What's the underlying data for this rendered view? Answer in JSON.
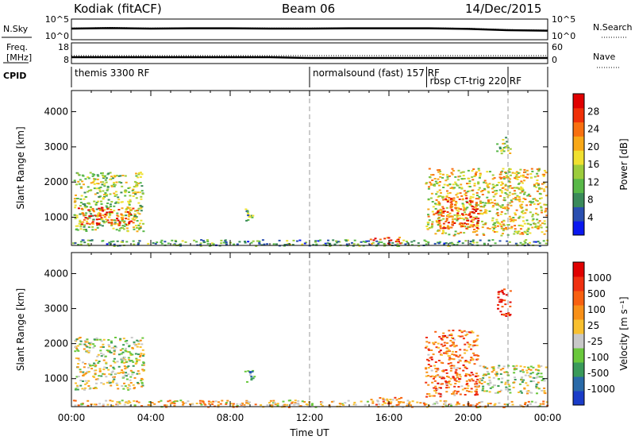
{
  "header": {
    "station": "Kodiak (fitACF)",
    "beam": "Beam 06",
    "date": "14/Dec/2015"
  },
  "chart_data": [
    {
      "type": "line",
      "panel": "noise",
      "left_label": "N.Sky",
      "right_label": "N.Search",
      "left_ticks": [
        "10^5",
        "10^0"
      ],
      "right_ticks": [
        "10^5",
        "10^0"
      ],
      "x": [
        0,
        2,
        4,
        6,
        8,
        10,
        12,
        14,
        16,
        18,
        20,
        22,
        24
      ],
      "series": [
        {
          "values": [
            30,
            32,
            30,
            31,
            31,
            30,
            30,
            31,
            31,
            31,
            29,
            24,
            22
          ]
        },
        {
          "values": [
            32,
            34,
            32,
            33,
            33,
            32,
            32,
            33,
            33,
            33,
            31,
            26,
            24
          ]
        }
      ]
    },
    {
      "type": "line",
      "panel": "freq-nave",
      "left_label": "Freq. [MHz]",
      "right_label": "Nave",
      "left_ticks": [
        "18",
        "8"
      ],
      "right_ticks": [
        "60",
        "0"
      ],
      "x": [
        0,
        2,
        4,
        6,
        8,
        10,
        12,
        14,
        16,
        18,
        20,
        22,
        24
      ],
      "series": [
        {
          "values": [
            11,
            11,
            11,
            11,
            11,
            11,
            10.5,
            10.5,
            10.5,
            10.5,
            10.5,
            10.5,
            10.5
          ]
        },
        {
          "values": [
            12,
            12,
            12,
            12,
            12,
            12,
            12,
            12,
            12,
            12,
            12,
            12,
            12
          ]
        }
      ]
    },
    {
      "type": "table",
      "panel": "cpid",
      "label": "CPID",
      "segments": [
        {
          "start": 0,
          "end": 12,
          "name": "themis 3300 RF"
        },
        {
          "start": 12,
          "end": 22,
          "name": "normalsound (fast) 157 RF"
        },
        {
          "start": 17.9,
          "end": 22,
          "name": "rbsp CT-trig 220 RF"
        }
      ]
    },
    {
      "type": "heatmap",
      "panel": "power",
      "ylabel": "Slant Range [km]",
      "yticks": [
        1000,
        2000,
        3000,
        4000
      ],
      "ylim": [
        200,
        4600
      ],
      "xlim": [
        0,
        24
      ],
      "colorbar_label": "Power [dB]",
      "colorbar_ticks": [
        "28",
        "24",
        "20",
        "16",
        "12",
        "8",
        "4"
      ],
      "colors": [
        "#0a18f0",
        "#2a4fb0",
        "#3a8a5a",
        "#58b848",
        "#9ccc3c",
        "#f0e030",
        "#f8a818",
        "#f87010",
        "#f03008",
        "#e00000"
      ],
      "regions": [
        {
          "t": [
            0.1,
            3.6
          ],
          "r": [
            600,
            2300
          ],
          "level": 0.45
        },
        {
          "t": [
            0.3,
            3.3
          ],
          "r": [
            800,
            1300
          ],
          "level": 0.8
        },
        {
          "t": [
            0.0,
            24
          ],
          "r": [
            200,
            380
          ],
          "level": 0.3
        },
        {
          "t": [
            8.6,
            9.2
          ],
          "r": [
            900,
            1300
          ],
          "level": 0.35
        },
        {
          "t": [
            15.0,
            16.6
          ],
          "r": [
            250,
            450
          ],
          "level": 0.85
        },
        {
          "t": [
            17.8,
            23.9
          ],
          "r": [
            500,
            2400
          ],
          "level": 0.55
        },
        {
          "t": [
            18.3,
            20.5
          ],
          "r": [
            700,
            1600
          ],
          "level": 0.85
        },
        {
          "t": [
            21.4,
            22.1
          ],
          "r": [
            2800,
            3300
          ],
          "level": 0.4
        }
      ]
    },
    {
      "type": "heatmap",
      "panel": "velocity",
      "ylabel": "Slant Range [km]",
      "yticks": [
        1000,
        2000,
        3000,
        4000
      ],
      "ylim": [
        200,
        4600
      ],
      "xlim": [
        0,
        24
      ],
      "xticks": [
        "00:00",
        "04:00",
        "08:00",
        "12:00",
        "16:00",
        "20:00",
        "00:00"
      ],
      "xlabel": "Time UT",
      "colorbar_label": "Velocity [m s⁻¹]",
      "colorbar_ticks": [
        "1000",
        "500",
        "100",
        "25",
        "-25",
        "-100",
        "-500",
        "-1000"
      ],
      "colors": [
        "#1a3cc8",
        "#2a6aa8",
        "#3a9a5a",
        "#6ac83c",
        "#c8c8c8",
        "#f8c030",
        "#f89018",
        "#f86010",
        "#f03010",
        "#e00000"
      ],
      "regions": [
        {
          "t": [
            0.1,
            3.6
          ],
          "r": [
            700,
            2200
          ],
          "level": 0.45
        },
        {
          "t": [
            0.0,
            24
          ],
          "r": [
            200,
            400
          ],
          "level": 0.55
        },
        {
          "t": [
            8.6,
            9.2
          ],
          "r": [
            900,
            1300
          ],
          "level": 0.3
        },
        {
          "t": [
            15.0,
            16.6
          ],
          "r": [
            250,
            500
          ],
          "level": 0.65
        },
        {
          "t": [
            17.8,
            20.5
          ],
          "r": [
            500,
            2400
          ],
          "level": 0.7
        },
        {
          "t": [
            20.5,
            23.9
          ],
          "r": [
            600,
            1400
          ],
          "level": 0.45
        },
        {
          "t": [
            21.4,
            22.1
          ],
          "r": [
            2800,
            3600
          ],
          "level": 0.9
        }
      ]
    }
  ]
}
